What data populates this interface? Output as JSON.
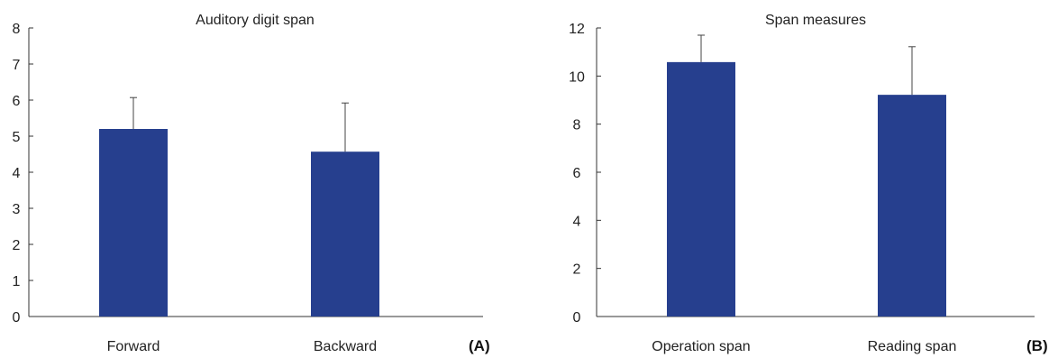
{
  "chart_data": [
    {
      "type": "bar",
      "panel": "(A)",
      "title": "Auditory digit span",
      "xlabel": "",
      "ylabel": "",
      "ylim": [
        0,
        8
      ],
      "yticks": [
        0,
        1,
        2,
        3,
        4,
        5,
        6,
        7,
        8
      ],
      "categories": [
        "Forward",
        "Backward"
      ],
      "values": [
        5.2,
        4.57
      ],
      "error_upper": [
        6.07,
        5.92
      ],
      "grid": false,
      "bar_color": "#263f8e"
    },
    {
      "type": "bar",
      "panel": "(B)",
      "title": "Span measures",
      "xlabel": "",
      "ylabel": "",
      "ylim": [
        0,
        12
      ],
      "yticks": [
        0,
        2,
        4,
        6,
        8,
        10,
        12
      ],
      "categories": [
        "Operation span",
        "Reading span"
      ],
      "values": [
        10.58,
        9.22
      ],
      "error_upper": [
        11.7,
        11.22
      ],
      "grid": false,
      "bar_color": "#263f8e"
    }
  ]
}
